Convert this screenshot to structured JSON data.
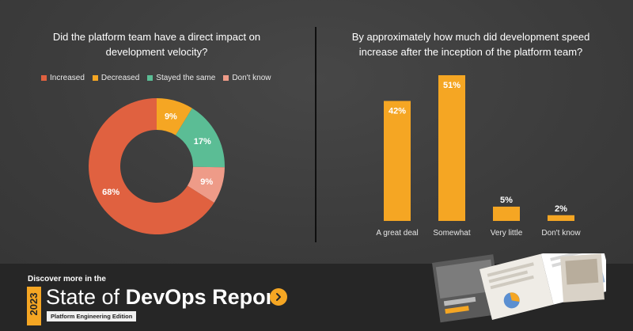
{
  "chart_data": [
    {
      "type": "pie",
      "title": "Did the platform team have a direct impact on development velocity?",
      "categories": [
        "Increased",
        "Decreased",
        "Stayed the same",
        "Don't know"
      ],
      "values": [
        68,
        9,
        17,
        9
      ],
      "labels": [
        "68%",
        "9%",
        "17%",
        "9%"
      ],
      "colors": [
        "#e06140",
        "#f5a623",
        "#5bbd95",
        "#ee9b88"
      ],
      "legend_position": "top"
    },
    {
      "type": "bar",
      "title": "By approximately how much did development speed increase after the inception of the platform team?",
      "categories": [
        "A great deal",
        "Somewhat",
        "Very little",
        "Don't know"
      ],
      "values": [
        42,
        51,
        5,
        2
      ],
      "labels": [
        "42%",
        "51%",
        "5%",
        "2%"
      ],
      "ylim": [
        0,
        51
      ],
      "color": "#f5a623",
      "grid": false
    }
  ],
  "footer": {
    "discover_text": "Discover more in the",
    "year": "2023",
    "report_title_light": "State of ",
    "report_title_bold": "DevOps Report",
    "edition": "Platform Engineering Edition",
    "cta_icon": "chevron-right-icon",
    "accent_color": "#f5a623"
  }
}
